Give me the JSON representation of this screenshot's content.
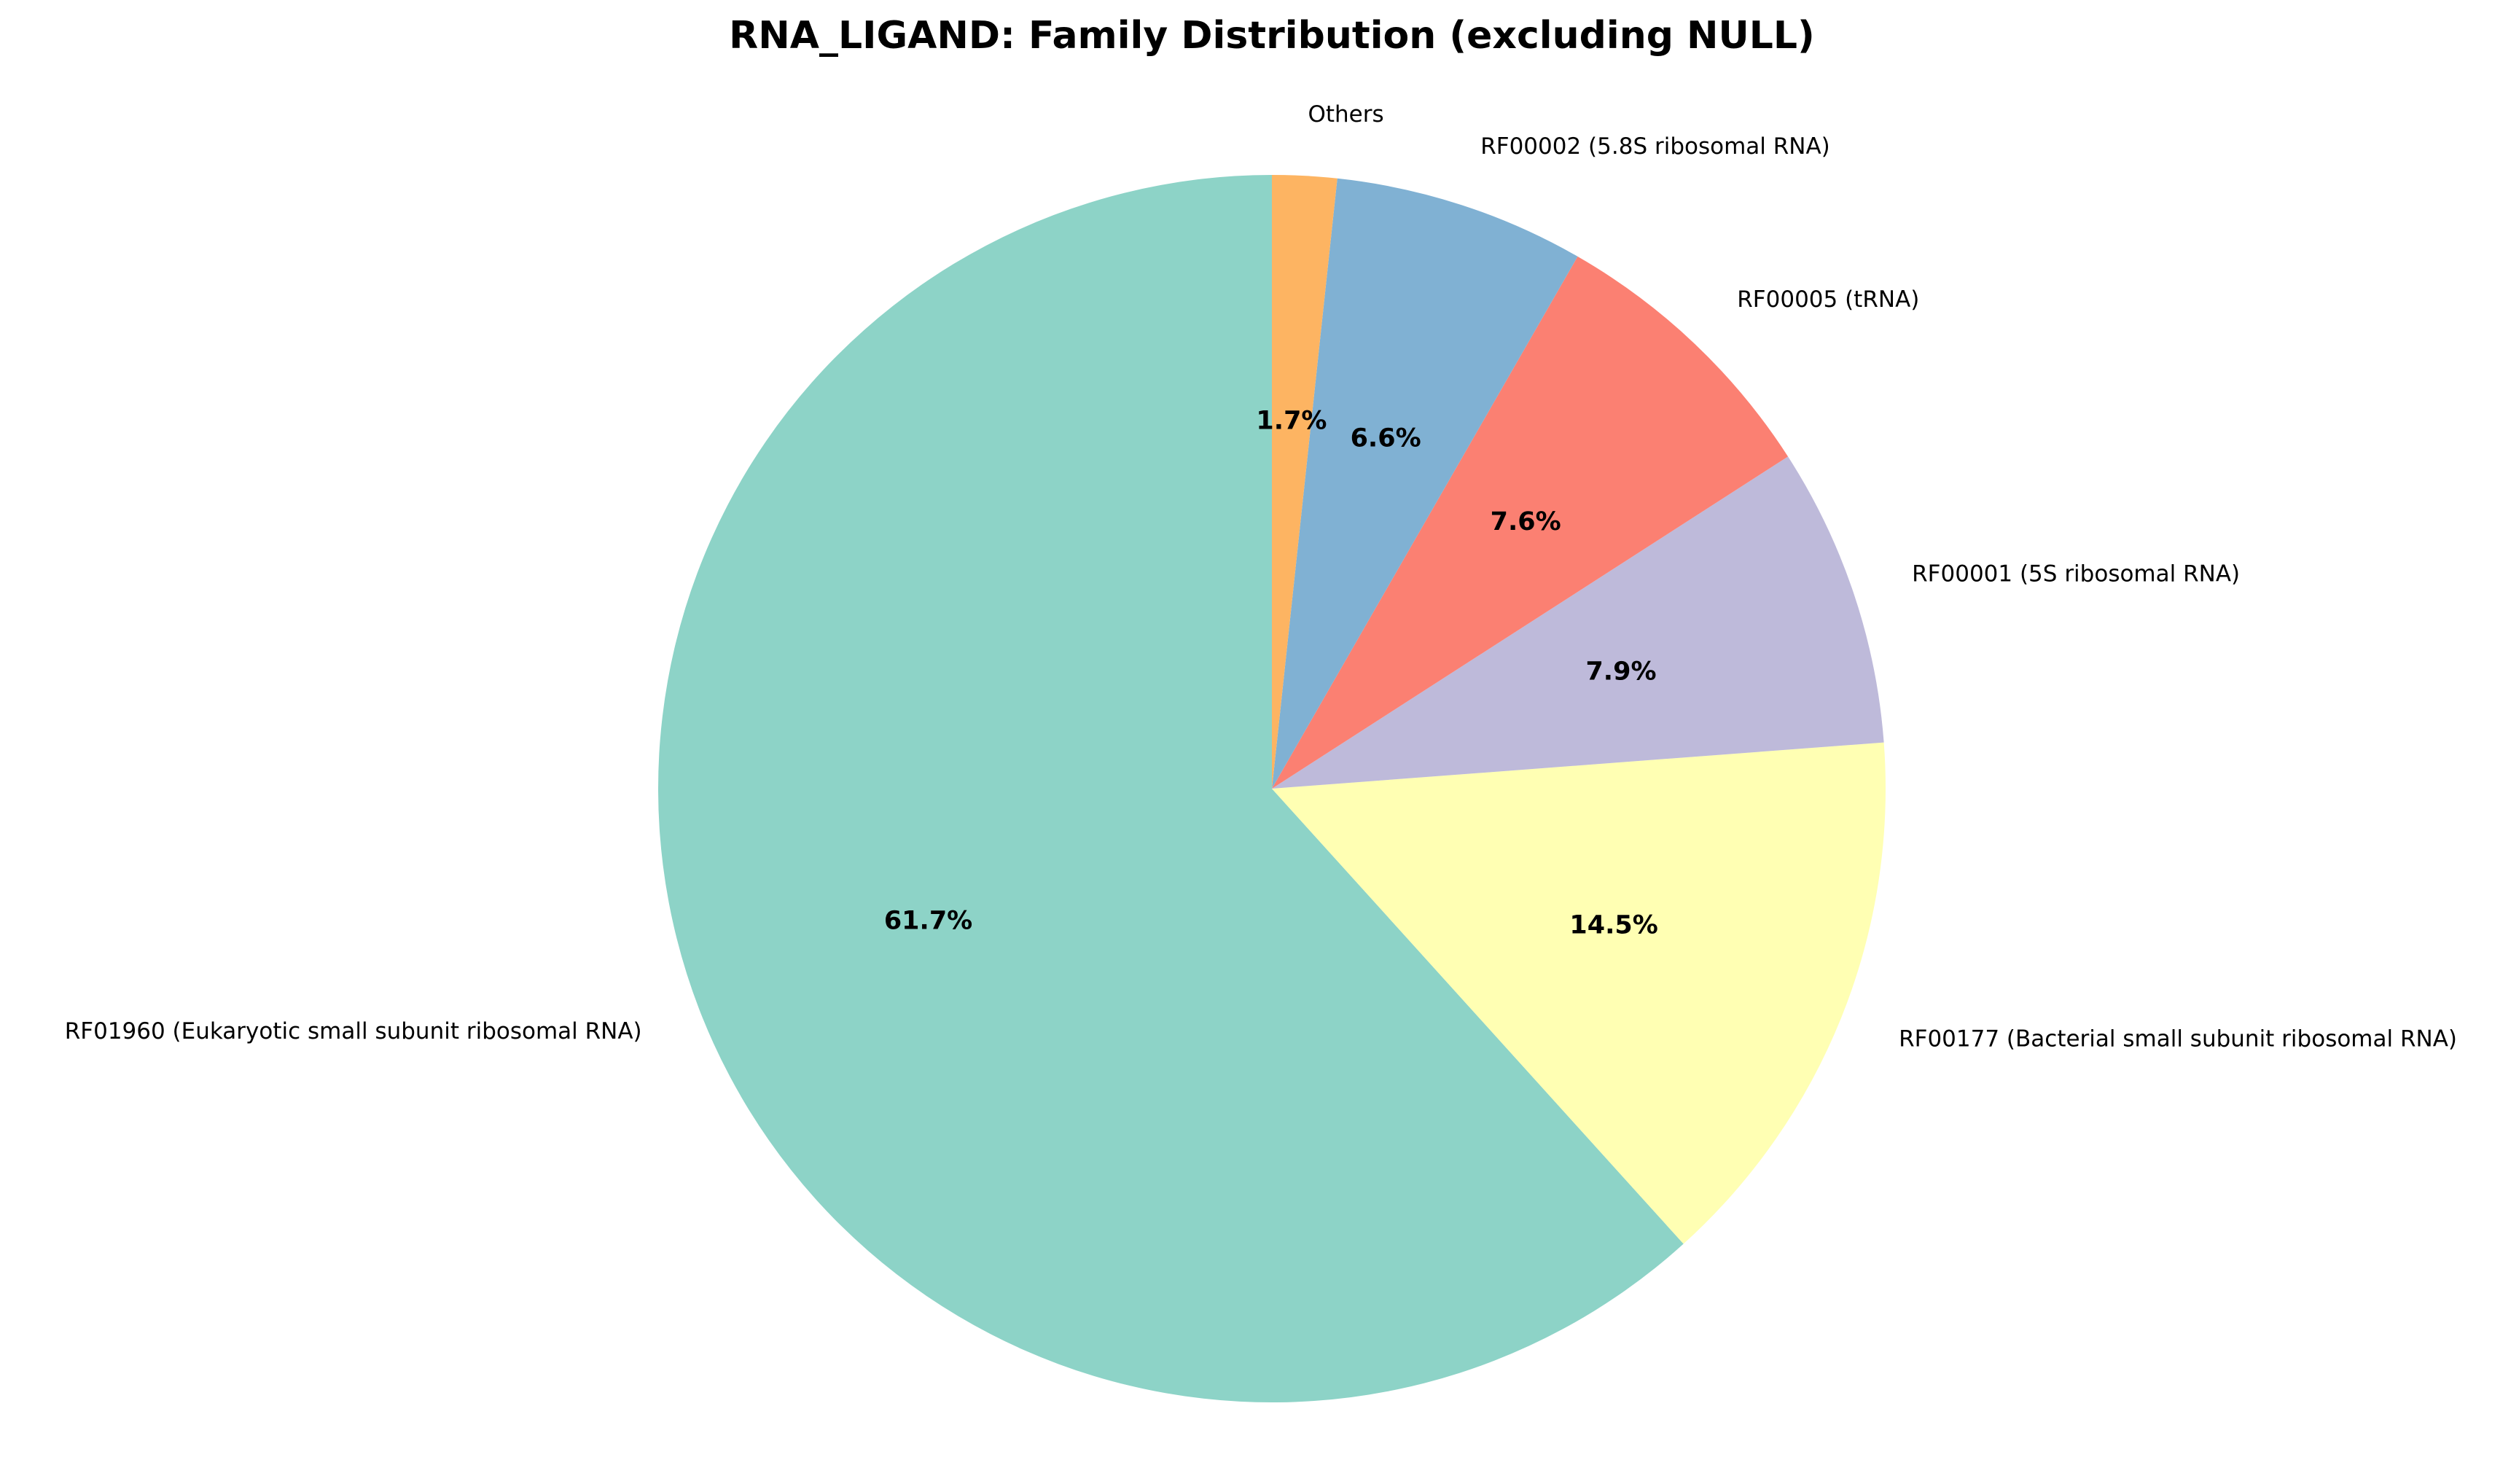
{
  "chart_data": {
    "type": "pie",
    "title": "RNA_LIGAND: Family Distribution (excluding NULL)",
    "start_angle_deg": 90,
    "direction": "counterclockwise",
    "slices": [
      {
        "label": "RF01960 (Eukaryotic small subunit ribosomal RNA)",
        "value": 61.7,
        "pct_label": "61.7%",
        "color": "#8dd3c7"
      },
      {
        "label": "RF00177 (Bacterial small subunit ribosomal RNA)",
        "value": 14.5,
        "pct_label": "14.5%",
        "color": "#ffffb3"
      },
      {
        "label": "RF00001 (5S ribosomal RNA)",
        "value": 7.9,
        "pct_label": "7.9%",
        "color": "#bebada"
      },
      {
        "label": "RF00005 (tRNA)",
        "value": 7.6,
        "pct_label": "7.6%",
        "color": "#fb8072"
      },
      {
        "label": "RF00002 (5.8S ribosomal RNA)",
        "value": 6.6,
        "pct_label": "6.6%",
        "color": "#80b1d3"
      },
      {
        "label": "Others",
        "value": 1.7,
        "pct_label": "1.7%",
        "color": "#fdb462"
      }
    ]
  }
}
